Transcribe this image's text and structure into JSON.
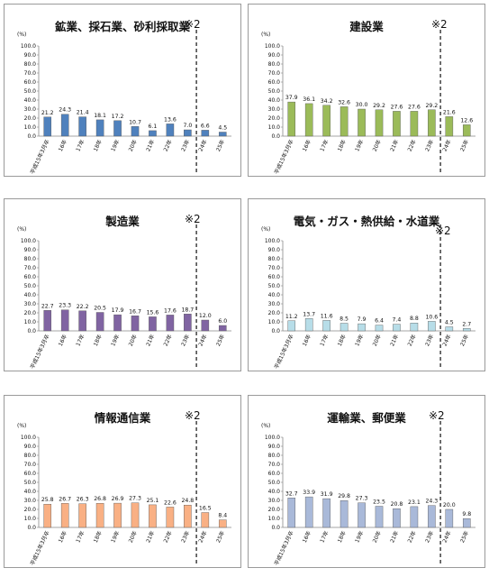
{
  "unit_label": "(%)",
  "note_label": "※2",
  "colors": {
    "mining": "#4f81bd",
    "construction": "#9bbb59",
    "manufacturing": "#8064a2",
    "utilities": "#b7dde8",
    "info": "#f9b084",
    "transport": "#a9b9d9",
    "edge_default": "#555555"
  },
  "chart_data": [
    {
      "type": "bar",
      "title": "鉱業、採石業、砂利採取業",
      "color_key": "mining",
      "categories": [
        "平成15年3月卒",
        "16年",
        "17年",
        "18年",
        "19年",
        "20年",
        "21年",
        "22年",
        "23年",
        "24年",
        "25年"
      ],
      "values": [
        21.2,
        24.3,
        21.4,
        18.1,
        17.2,
        10.7,
        6.1,
        13.6,
        7.0,
        6.6,
        4.5
      ],
      "value_labels": [
        "21.2",
        "24.3",
        "21.4",
        "18.1",
        "17.2",
        "10.7",
        "6.1",
        "13.6",
        "7.0",
        "6.6",
        "4.5"
      ],
      "ylim": [
        0,
        100
      ],
      "yticks": [
        "0.0",
        "10.0",
        "20.0",
        "30.0",
        "40.0",
        "50.0",
        "60.0",
        "70.0",
        "80.0",
        "90.0",
        "100.0"
      ],
      "divider_after_category": "23年",
      "grid": false
    },
    {
      "type": "bar",
      "title": "建設業",
      "color_key": "construction",
      "categories": [
        "平成15年3月卒",
        "16年",
        "17年",
        "18年",
        "19年",
        "20年",
        "21年",
        "22年",
        "23年",
        "24年",
        "25年"
      ],
      "values": [
        37.9,
        36.1,
        34.2,
        32.6,
        30.0,
        29.2,
        27.6,
        27.6,
        29.2,
        21.6,
        12.6
      ],
      "value_labels": [
        "37.9",
        "36.1",
        "34.2",
        "32.6",
        "30.0",
        "29.2",
        "27.6",
        "27.6",
        "29.2",
        "21.6",
        "12.6"
      ],
      "ylim": [
        0,
        100
      ],
      "yticks": [
        "0.0",
        "10.0",
        "20.0",
        "30.0",
        "40.0",
        "50.0",
        "60.0",
        "70.0",
        "80.0",
        "90.0",
        "100.0"
      ],
      "divider_after_category": "23年",
      "grid": false
    },
    {
      "type": "bar",
      "title": "製造業",
      "color_key": "manufacturing",
      "categories": [
        "平成15年3月卒",
        "16年",
        "17年",
        "18年",
        "19年",
        "20年",
        "21年",
        "22年",
        "23年",
        "24年",
        "25年"
      ],
      "values": [
        22.7,
        23.3,
        22.2,
        20.5,
        17.9,
        16.7,
        15.6,
        17.6,
        18.7,
        12.0,
        6.0
      ],
      "value_labels": [
        "22.7",
        "23.3",
        "22.2",
        "20.5",
        "17.9",
        "16.7",
        "15.6",
        "17.6",
        "18.7",
        "12.0",
        "6.0"
      ],
      "ylim": [
        0,
        100
      ],
      "yticks": [
        "0.0",
        "10.0",
        "20.0",
        "30.0",
        "40.0",
        "50.0",
        "60.0",
        "70.0",
        "80.0",
        "90.0",
        "100.0"
      ],
      "divider_after_category": "23年",
      "grid": false
    },
    {
      "type": "bar",
      "title": "電気・ガス・熱供給・水道業",
      "color_key": "utilities",
      "categories": [
        "平成15年3月卒",
        "16年",
        "17年",
        "18年",
        "19年",
        "20年",
        "21年",
        "22年",
        "23年",
        "24年",
        "25年"
      ],
      "values": [
        11.2,
        13.7,
        11.6,
        8.5,
        7.9,
        6.4,
        7.4,
        8.8,
        10.6,
        4.5,
        2.7
      ],
      "value_labels": [
        "11.2",
        "13.7",
        "11.6",
        "8.5",
        "7.9",
        "6.4",
        "7.4",
        "8.8",
        "10.6",
        "4.5",
        "2.7"
      ],
      "ylim": [
        0,
        100
      ],
      "yticks": [
        "0.0",
        "10.0",
        "20.0",
        "30.0",
        "40.0",
        "50.0",
        "60.0",
        "70.0",
        "80.0",
        "90.0",
        "100.0"
      ],
      "divider_after_category": "23年",
      "grid": false
    },
    {
      "type": "bar",
      "title": "情報通信業",
      "color_key": "info",
      "categories": [
        "平成15年3月卒",
        "16年",
        "17年",
        "18年",
        "19年",
        "20年",
        "21年",
        "22年",
        "23年",
        "24年",
        "25年"
      ],
      "values": [
        25.8,
        26.7,
        26.3,
        26.8,
        26.9,
        27.3,
        25.1,
        22.6,
        24.8,
        16.5,
        8.4
      ],
      "value_labels": [
        "25.8",
        "26.7",
        "26.3",
        "26.8",
        "26.9",
        "27.3",
        "25.1",
        "22.6",
        "24.8",
        "16.5",
        "8.4"
      ],
      "ylim": [
        0,
        100
      ],
      "yticks": [
        "0.0",
        "10.0",
        "20.0",
        "30.0",
        "40.0",
        "50.0",
        "60.0",
        "70.0",
        "80.0",
        "90.0",
        "100.0"
      ],
      "divider_after_category": "23年",
      "grid": false
    },
    {
      "type": "bar",
      "title": "運輸業、郵便業",
      "color_key": "transport",
      "categories": [
        "平成15年3月卒",
        "16年",
        "17年",
        "18年",
        "19年",
        "20年",
        "21年",
        "22年",
        "23年",
        "24年",
        "25年"
      ],
      "values": [
        32.7,
        33.9,
        31.9,
        29.8,
        27.3,
        23.5,
        20.8,
        23.1,
        24.3,
        20.0,
        9.8
      ],
      "value_labels": [
        "32.7",
        "33.9",
        "31.9",
        "29.8",
        "27.3",
        "23.5",
        "20.8",
        "23.1",
        "24.3",
        "20.0",
        "9.8"
      ],
      "ylim": [
        0,
        100
      ],
      "yticks": [
        "0.0",
        "10.0",
        "20.0",
        "30.0",
        "40.0",
        "50.0",
        "60.0",
        "70.0",
        "80.0",
        "90.0",
        "100.0"
      ],
      "divider_after_category": "23年",
      "grid": false
    }
  ]
}
